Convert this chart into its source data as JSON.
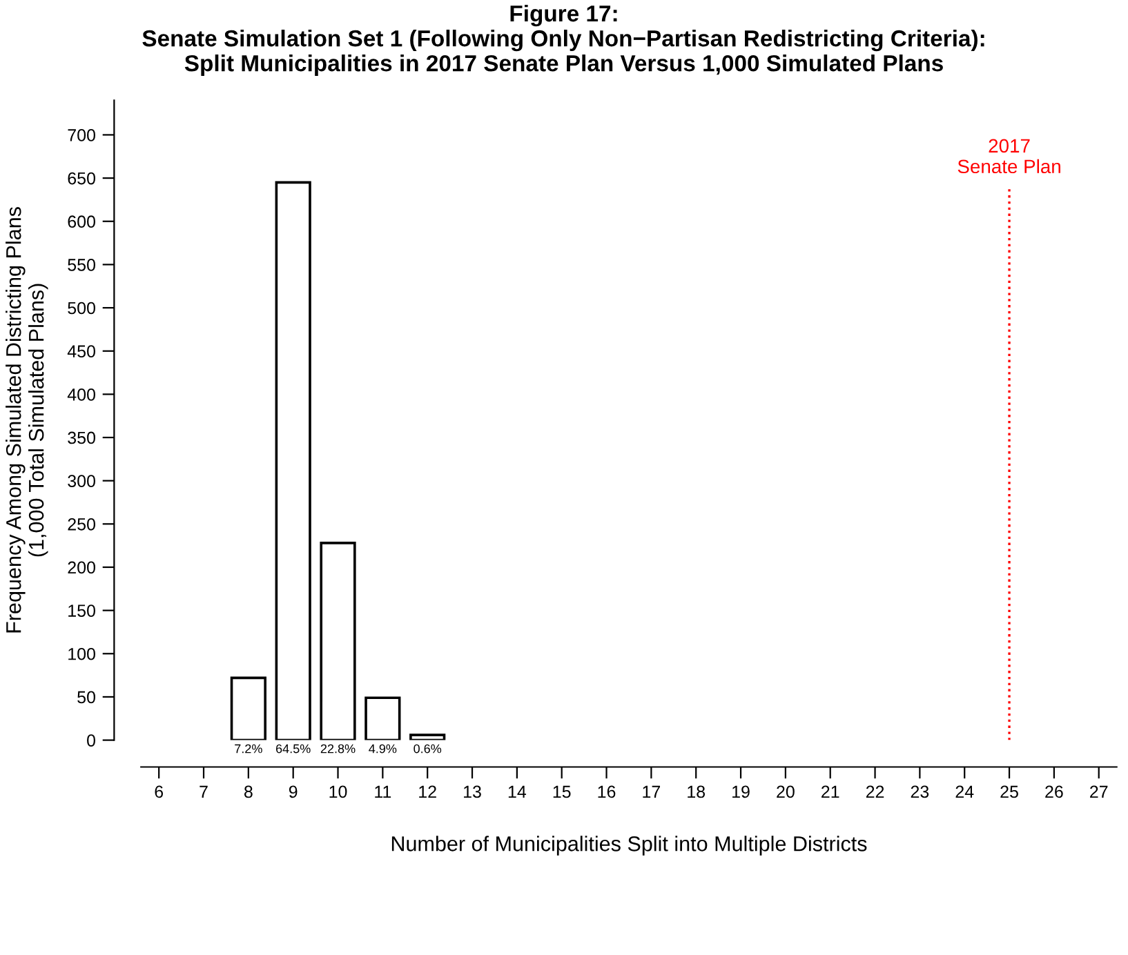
{
  "chart_data": {
    "type": "bar",
    "title": "Figure 17:\nSenate Simulation Set 1 (Following Only Non−Partisan Redistricting Criteria):\nSplit Municipalities in 2017 Senate Plan Versus 1,000 Simulated Plans",
    "xlabel": "Number of Municipalities Split into Multiple Districts",
    "ylabel": "Frequency Among Simulated Districting Plans\n(1,000 Total Simulated Plans)",
    "x": [
      8,
      9,
      10,
      11,
      12
    ],
    "series": [
      {
        "color": "#ffffff",
        "values": [
          72,
          645,
          228,
          49,
          6
        ]
      }
    ],
    "annotations": [
      {
        "text": "7.2%",
        "x": 8,
        "y": 0
      },
      {
        "text": "64.5%",
        "x": 9,
        "y": 0
      },
      {
        "text": "22.8%",
        "x": 10,
        "y": 0
      },
      {
        "text": "4.9%",
        "x": 11,
        "y": 0
      },
      {
        "text": "0.6%",
        "x": 12,
        "y": 0
      }
    ],
    "xlim": [
      5.6,
      27.4
    ],
    "xticks": [
      6,
      7,
      8,
      9,
      10,
      11,
      12,
      13,
      14,
      15,
      16,
      17,
      18,
      19,
      20,
      21,
      22,
      23,
      24,
      25,
      26,
      27
    ],
    "ylim": [
      0,
      740
    ],
    "yticks": [
      0,
      50,
      100,
      150,
      200,
      250,
      300,
      350,
      400,
      450,
      500,
      550,
      600,
      650,
      700
    ],
    "ref_lines": [
      {
        "axis": "x",
        "value": 25,
        "label": "2017\nSenate Plan",
        "color": "#ff0000",
        "line_style": "dotted"
      }
    ],
    "grid": false,
    "legend": false
  }
}
